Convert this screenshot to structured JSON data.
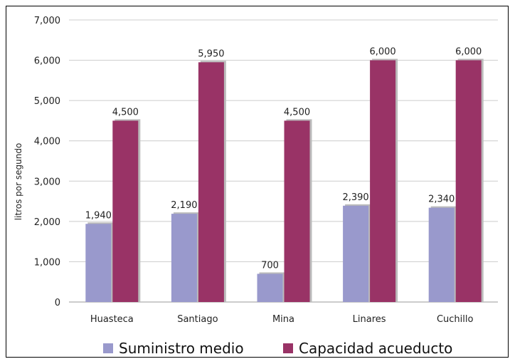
{
  "chart_data": {
    "type": "bar",
    "title": "",
    "xlabel": "",
    "ylabel": "litros por segundo",
    "categories": [
      "Huasteca",
      "Santiago",
      "Mina",
      "Linares",
      "Cuchillo"
    ],
    "series": [
      {
        "name": "Suministro medio",
        "values": [
          1940,
          2190,
          700,
          2390,
          2340
        ],
        "labels": [
          "1,940",
          "2,190",
          "700",
          "2,390",
          "2,340"
        ],
        "color": "#9999cc"
      },
      {
        "name": "Capacidad acueducto",
        "values": [
          4500,
          5950,
          4500,
          6000,
          6000
        ],
        "labels": [
          "4,500",
          "5,950",
          "4,500",
          "6,000",
          "6,000"
        ],
        "color": "#993366"
      }
    ],
    "ylim": [
      0,
      7000
    ],
    "yticks": [
      0,
      1000,
      2000,
      3000,
      4000,
      5000,
      6000,
      7000
    ],
    "ytick_labels": [
      "0",
      "1,000",
      "2,000",
      "3,000",
      "4,000",
      "5,000",
      "6,000",
      "7,000"
    ],
    "grid": true,
    "legend_position": "bottom"
  }
}
